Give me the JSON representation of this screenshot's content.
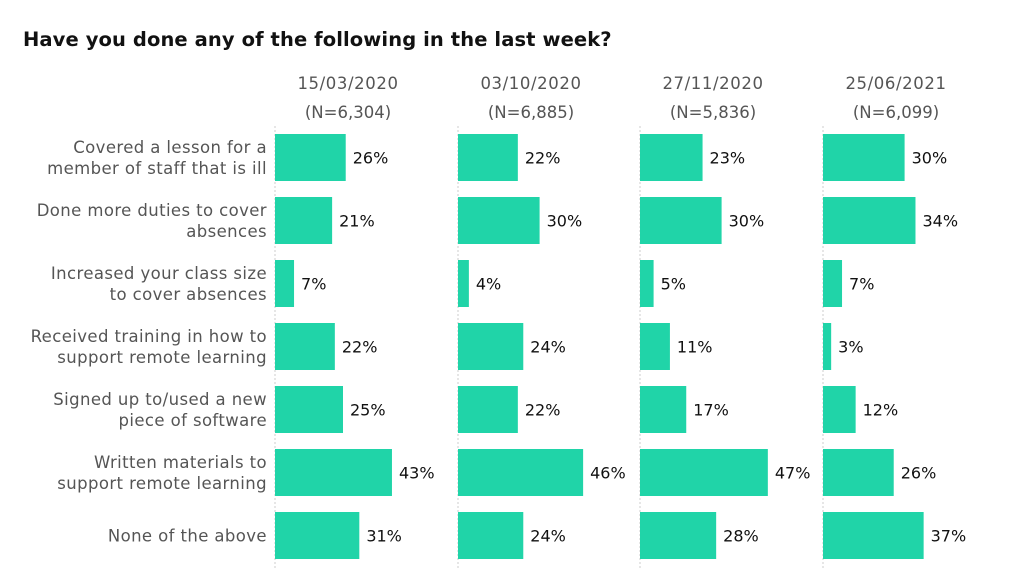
{
  "chart_data": {
    "type": "bar",
    "orientation": "horizontal",
    "layout": "small-multiples",
    "title": "Have you done any of the following in the last week?",
    "xlabel": "",
    "ylabel": "",
    "xlim": [
      0,
      50
    ],
    "grid": false,
    "legend": "none",
    "bar_color": "#20d4a8",
    "categories": [
      [
        "Covered a lesson for a",
        "member of staff that is ill"
      ],
      [
        "Done more duties to cover",
        "absences"
      ],
      [
        "Increased your class size",
        "to cover absences"
      ],
      [
        "Received training in how to",
        "support remote learning"
      ],
      [
        "Signed up to/used a new",
        "piece of software"
      ],
      [
        "Written materials to",
        "support remote learning"
      ],
      [
        "None of the above"
      ]
    ],
    "series": [
      {
        "name": "15/03/2020",
        "n_label": "(N=6,304)",
        "values": [
          26,
          21,
          7,
          22,
          25,
          43,
          31
        ]
      },
      {
        "name": "03/10/2020",
        "n_label": "(N=6,885)",
        "values": [
          22,
          30,
          4,
          24,
          22,
          46,
          24
        ]
      },
      {
        "name": "27/11/2020",
        "n_label": "(N=5,836)",
        "values": [
          23,
          30,
          5,
          11,
          17,
          47,
          28
        ]
      },
      {
        "name": "25/06/2021",
        "n_label": "(N=6,099)",
        "values": [
          30,
          34,
          7,
          3,
          12,
          26,
          37
        ]
      }
    ],
    "value_suffix": "%"
  }
}
